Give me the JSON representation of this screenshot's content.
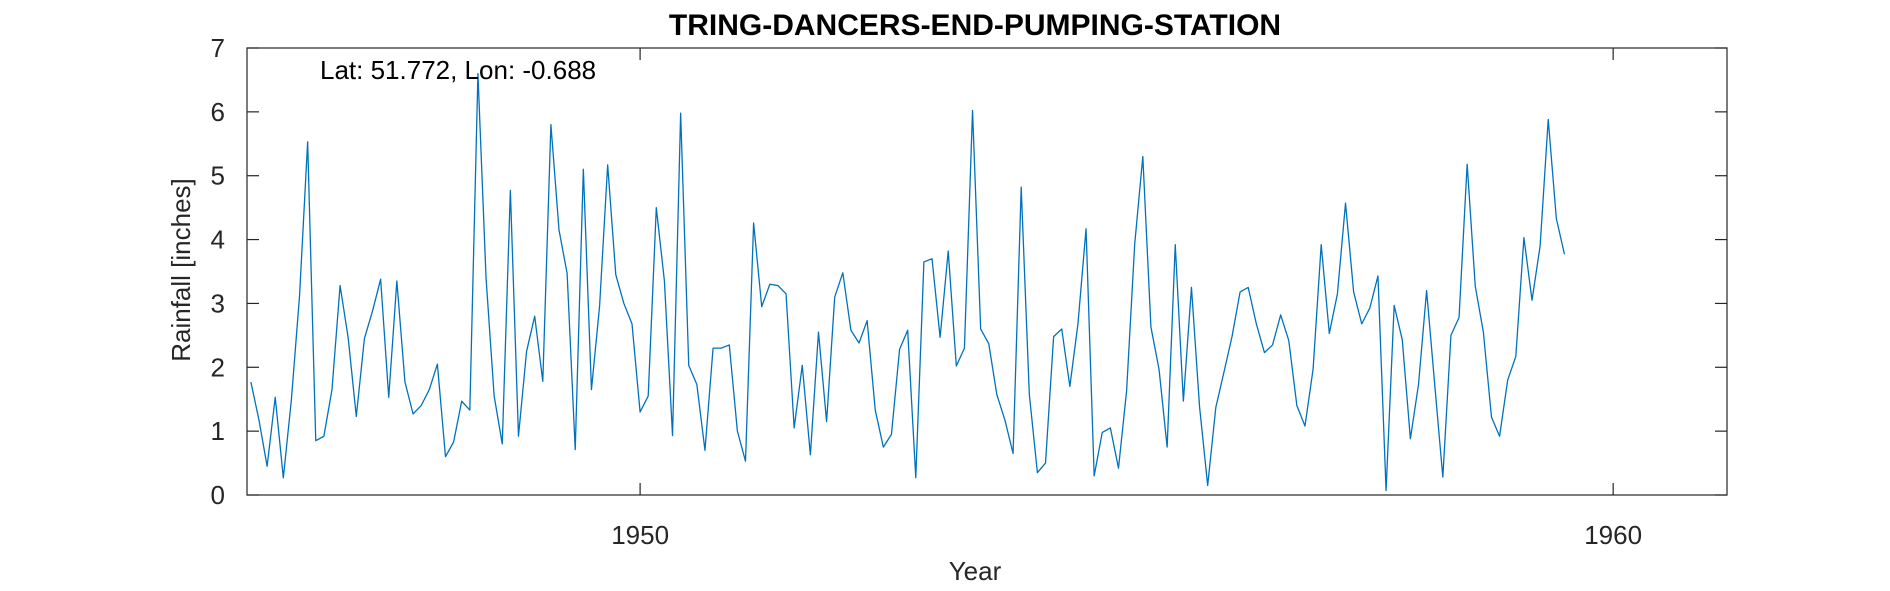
{
  "chart_data": {
    "type": "line",
    "title": "TRING-DANCERS-END-PUMPING-STATION",
    "xlabel": "Year",
    "ylabel": "Rainfall [inches]",
    "annotation": "Lat: 51.772, Lon: -0.688",
    "xlim": [
      1945.96,
      1961.17
    ],
    "ylim": [
      0,
      7
    ],
    "xticks": [
      1950,
      1960
    ],
    "xtick_labels": [
      "1950",
      "1960"
    ],
    "yticks": [
      0,
      1,
      2,
      3,
      4,
      5,
      6,
      7
    ],
    "ytick_labels": [
      "0",
      "1",
      "2",
      "3",
      "4",
      "5",
      "6",
      "7"
    ],
    "grid": false,
    "box": true,
    "series_color": "#0072BD",
    "series": [
      {
        "x_start": 1946.0,
        "x_step": 0.08333,
        "values": [
          1.77,
          1.17,
          0.45,
          1.53,
          0.27,
          1.5,
          3.12,
          5.53,
          0.85,
          0.92,
          1.65,
          3.28,
          2.46,
          1.23,
          2.45,
          2.88,
          3.38,
          1.53,
          3.35,
          1.77,
          1.27,
          1.4,
          1.65,
          2.05,
          0.6,
          0.83,
          1.47,
          1.33,
          6.6,
          3.4,
          1.55,
          0.8,
          4.77,
          0.92,
          2.25,
          2.8,
          1.78,
          5.8,
          4.15,
          3.47,
          0.71,
          5.1,
          1.65,
          2.95,
          5.17,
          3.45,
          3.0,
          2.68,
          1.3,
          1.55,
          4.5,
          3.35,
          0.93,
          5.98,
          2.03,
          1.73,
          0.7,
          2.3,
          2.3,
          2.35,
          1.0,
          0.53,
          4.26,
          2.95,
          3.3,
          3.28,
          3.15,
          1.05,
          2.03,
          0.63,
          2.55,
          1.15,
          3.1,
          3.48,
          2.58,
          2.38,
          2.73,
          1.33,
          0.75,
          0.95,
          2.28,
          2.58,
          0.27,
          3.65,
          3.7,
          2.47,
          3.82,
          2.02,
          2.3,
          6.02,
          2.6,
          2.37,
          1.57,
          1.17,
          0.65,
          4.82,
          1.58,
          0.35,
          0.5,
          2.48,
          2.6,
          1.7,
          2.68,
          4.17,
          0.3,
          0.98,
          1.05,
          0.42,
          1.63,
          3.93,
          5.3,
          2.63,
          1.97,
          0.75,
          3.92,
          1.47,
          3.25,
          1.38,
          0.15,
          1.37,
          1.92,
          2.48,
          3.18,
          3.25,
          2.68,
          2.23,
          2.35,
          2.82,
          2.42,
          1.4,
          1.08,
          1.97,
          3.92,
          2.53,
          3.15,
          4.57,
          3.18,
          2.68,
          2.93,
          3.43,
          0.07,
          2.97,
          2.43,
          0.88,
          1.73,
          3.2,
          1.73,
          0.28,
          2.5,
          2.78,
          5.18,
          3.27,
          2.55,
          1.22,
          0.92,
          1.8,
          2.17,
          4.03,
          3.05,
          3.9,
          5.88,
          4.33,
          3.77
        ]
      }
    ]
  }
}
